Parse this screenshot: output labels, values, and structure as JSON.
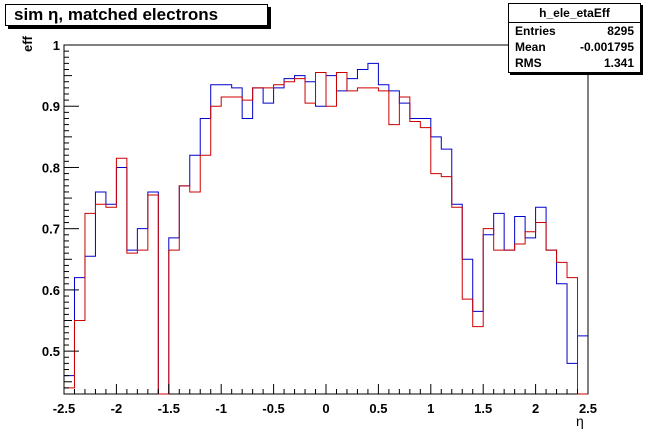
{
  "title_text": "sim η,  matched electrons",
  "stats": {
    "name": "h_ele_etaEff",
    "rows": [
      {
        "label": "Entries",
        "value": "8295"
      },
      {
        "label": "Mean",
        "value": "-0.001795"
      },
      {
        "label": "RMS",
        "value": "1.341"
      }
    ]
  },
  "chart_data": {
    "type": "line",
    "title": "sim η,  matched electrons",
    "xlabel": "η",
    "ylabel": "eff",
    "xlim": [
      -2.5,
      2.5
    ],
    "ylim": [
      0.43,
      1.0
    ],
    "grid": false,
    "x_ticks": [
      "-2.5",
      "-2",
      "-1.5",
      "-1",
      "-0.5",
      "0",
      "0.5",
      "1",
      "1.5",
      "2",
      "2.5"
    ],
    "x_tick_values": [
      -2.5,
      -2,
      -1.5,
      -1,
      -0.5,
      0,
      0.5,
      1,
      1.5,
      2,
      2.5
    ],
    "y_ticks": [
      "0.5",
      "0.6",
      "0.7",
      "0.8",
      "0.9",
      "1"
    ],
    "y_tick_values": [
      0.5,
      0.6,
      0.7,
      0.8,
      0.9,
      1.0
    ],
    "bin_edges_start": -2.5,
    "bin_width": 0.1,
    "series": [
      {
        "color": "#0000cc",
        "values": [
          0.46,
          0.62,
          0.655,
          0.76,
          0.74,
          0.8,
          0.665,
          0.7,
          0.76,
          0.43,
          0.685,
          0.77,
          0.82,
          0.88,
          0.935,
          0.935,
          0.93,
          0.88,
          0.93,
          0.905,
          0.93,
          0.945,
          0.95,
          0.94,
          0.9,
          0.95,
          0.925,
          0.945,
          0.96,
          0.97,
          0.935,
          0.925,
          0.905,
          0.88,
          0.88,
          0.85,
          0.83,
          0.74,
          0.65,
          0.565,
          0.69,
          0.725,
          0.665,
          0.72,
          0.685,
          0.735,
          0.665,
          0.61,
          0.48,
          0.525
        ]
      },
      {
        "color": "#cc0000",
        "values": [
          0.44,
          0.55,
          0.725,
          0.74,
          0.735,
          0.815,
          0.66,
          0.665,
          0.755,
          0.43,
          0.665,
          0.77,
          0.76,
          0.82,
          0.9,
          0.915,
          0.915,
          0.91,
          0.93,
          0.93,
          0.935,
          0.94,
          0.945,
          0.905,
          0.955,
          0.9,
          0.955,
          0.925,
          0.93,
          0.93,
          0.925,
          0.87,
          0.915,
          0.875,
          0.865,
          0.79,
          0.785,
          0.735,
          0.585,
          0.54,
          0.7,
          0.665,
          0.665,
          0.675,
          0.695,
          0.71,
          0.665,
          0.645,
          0.62,
          0.43
        ]
      }
    ]
  }
}
